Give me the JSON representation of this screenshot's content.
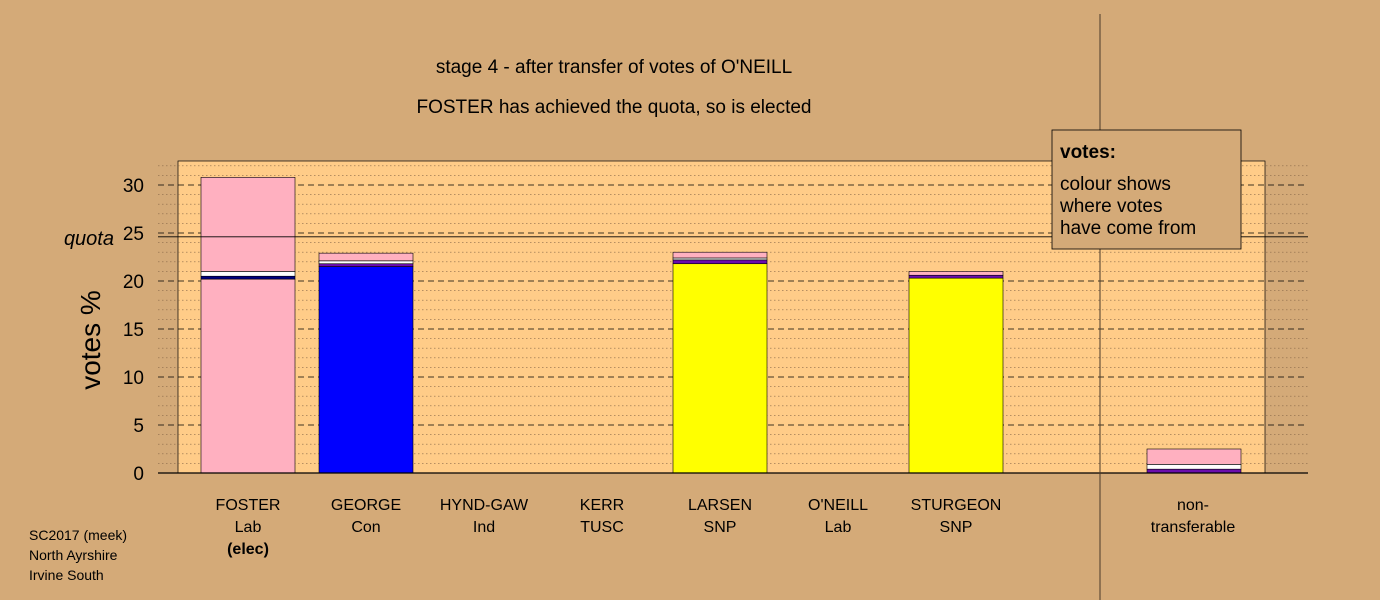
{
  "chart_data": {
    "type": "bar",
    "stacked": true,
    "title": "stage 4 - after transfer of votes of O'NEILL",
    "subtitle": "FOSTER has achieved the quota, so is elected",
    "ylabel": "votes %",
    "ylim": [
      0,
      32.5
    ],
    "yticks": [
      "0",
      "5",
      "10",
      "15",
      "20",
      "25",
      "30"
    ],
    "quota": {
      "label": "quota",
      "value": 24.6
    },
    "grid": true,
    "legend_position": "top-right",
    "legend": {
      "title": "votes:",
      "lines": [
        "colour shows",
        "where votes",
        "have come from"
      ]
    },
    "colors": {
      "background": "#d4aa78",
      "plot_area": "#ffcc88",
      "Lab": "#ffb0c0",
      "Con": "#0000ff",
      "SNP": "#ffff00",
      "transfer_white": "#ffffff",
      "transfer_purple": "#6a0dad",
      "transfer_navy": "#000080"
    },
    "candidates": [
      {
        "name": "FOSTER",
        "party": "Lab",
        "status": "(elec)",
        "segments": [
          {
            "from": "Lab",
            "value": 20.2,
            "color": "#ffb0c0"
          },
          {
            "from": "transfer",
            "value": 0.3,
            "color": "#000080"
          },
          {
            "from": "transfer",
            "value": 0.5,
            "color": "#ffffff"
          },
          {
            "from": "Lab",
            "value": 9.8,
            "color": "#ffb0c0"
          }
        ]
      },
      {
        "name": "GEORGE",
        "party": "Con",
        "status": "",
        "segments": [
          {
            "from": "Con",
            "value": 21.5,
            "color": "#0000ff"
          },
          {
            "from": "transfer",
            "value": 0.3,
            "color": "#6a0dad"
          },
          {
            "from": "transfer",
            "value": 0.3,
            "color": "#ffffff"
          },
          {
            "from": "Lab",
            "value": 0.8,
            "color": "#ffb0c0"
          }
        ]
      },
      {
        "name": "HYND-GAW",
        "party": "Ind",
        "status": "",
        "segments": []
      },
      {
        "name": "KERR",
        "party": "TUSC",
        "status": "",
        "segments": []
      },
      {
        "name": "LARSEN",
        "party": "SNP",
        "status": "",
        "segments": [
          {
            "from": "SNP",
            "value": 21.8,
            "color": "#ffff00"
          },
          {
            "from": "transfer",
            "value": 0.4,
            "color": "#6a0dad"
          },
          {
            "from": "transfer",
            "value": 0.2,
            "color": "#ffffff"
          },
          {
            "from": "Lab",
            "value": 0.6,
            "color": "#ffb0c0"
          }
        ]
      },
      {
        "name": "O'NEILL",
        "party": "Lab",
        "status": "",
        "segments": []
      },
      {
        "name": "STURGEON",
        "party": "SNP",
        "status": "",
        "segments": [
          {
            "from": "SNP",
            "value": 20.3,
            "color": "#ffff00"
          },
          {
            "from": "transfer",
            "value": 0.3,
            "color": "#6a0dad"
          },
          {
            "from": "Lab",
            "value": 0.4,
            "color": "#ffb0c0"
          }
        ]
      }
    ],
    "non_transferable": {
      "label_line1": "non-",
      "label_line2": "transferable",
      "segments": [
        {
          "from": "transfer",
          "value": 0.4,
          "color": "#6a0dad"
        },
        {
          "from": "transfer",
          "value": 0.5,
          "color": "#ffffff"
        },
        {
          "from": "Lab",
          "value": 1.6,
          "color": "#ffb0c0"
        }
      ]
    }
  },
  "footer": {
    "line1": "SC2017 (meek)",
    "line2": "North Ayrshire",
    "line3": "Irvine South"
  }
}
